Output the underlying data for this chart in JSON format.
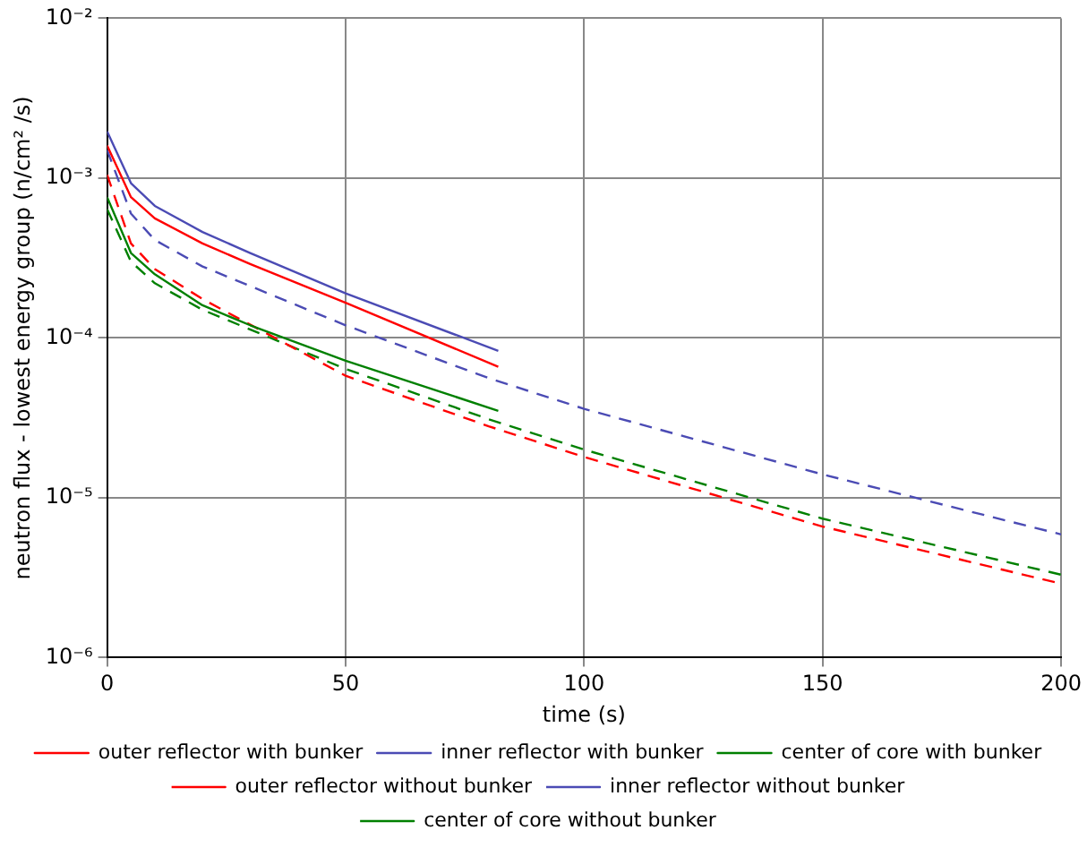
{
  "chart_data": {
    "type": "line",
    "xlabel": "time (s)",
    "ylabel": "neutron flux - lowest energy group (n/cm² /s)",
    "xlim": [
      0,
      200
    ],
    "xticks": [
      0,
      50,
      100,
      150,
      200
    ],
    "ylim": [
      1e-06,
      0.01
    ],
    "yticks": [
      {
        "value": 1e-06,
        "label": "10⁻⁶"
      },
      {
        "value": 1e-05,
        "label": "10⁻⁵"
      },
      {
        "value": 0.0001,
        "label": "10⁻⁴"
      },
      {
        "value": 0.001,
        "label": "10⁻³"
      },
      {
        "value": 0.01,
        "label": "10⁻²"
      }
    ],
    "log": "y",
    "grid": true,
    "legend": "bottom",
    "marker": "none",
    "series": [
      {
        "name": "outer reflector with bunker",
        "color": "#ff0000",
        "line_style": "solid",
        "x": [
          0,
          5,
          10,
          20,
          30,
          50,
          82
        ],
        "values": [
          0.0016,
          0.00076,
          0.00056,
          0.00039,
          0.00029,
          0.000166,
          6.6e-05
        ]
      },
      {
        "name": "inner reflector with bunker",
        "color": "#4b4bb4",
        "line_style": "solid",
        "x": [
          0,
          5,
          10,
          20,
          30,
          50,
          82
        ],
        "values": [
          0.00196,
          0.00093,
          0.00067,
          0.00046,
          0.00034,
          0.00019,
          8.3e-05
        ]
      },
      {
        "name": "center of core with bunker",
        "color": "#008000",
        "line_style": "solid",
        "x": [
          0,
          5,
          10,
          20,
          30,
          50,
          82
        ],
        "values": [
          0.00076,
          0.00034,
          0.00025,
          0.00016,
          0.00012,
          7.2e-05,
          3.5e-05
        ]
      },
      {
        "name": "outer reflector without bunker",
        "color": "#ff0000",
        "line_style": "dashed",
        "x": [
          0,
          5,
          10,
          20,
          50,
          80,
          100,
          150,
          200
        ],
        "values": [
          0.00105,
          0.00039,
          0.00027,
          0.000175,
          5.8e-05,
          2.8e-05,
          1.8e-05,
          6.6e-06,
          2.9e-06
        ]
      },
      {
        "name": "inner reflector without bunker",
        "color": "#4b4bb4",
        "line_style": "dashed",
        "x": [
          0,
          5,
          10,
          20,
          50,
          80,
          100,
          150,
          200
        ],
        "values": [
          0.0015,
          0.0006,
          0.00041,
          0.00028,
          0.00012,
          5.6e-05,
          3.6e-05,
          1.4e-05,
          5.9e-06
        ]
      },
      {
        "name": "center of core without bunker",
        "color": "#008000",
        "line_style": "dashed",
        "x": [
          0,
          5,
          10,
          20,
          50,
          80,
          100,
          150,
          200
        ],
        "values": [
          0.00064,
          0.0003,
          0.00022,
          0.00015,
          6.4e-05,
          3.1e-05,
          2e-05,
          7.4e-06,
          3.3e-06
        ]
      }
    ]
  }
}
